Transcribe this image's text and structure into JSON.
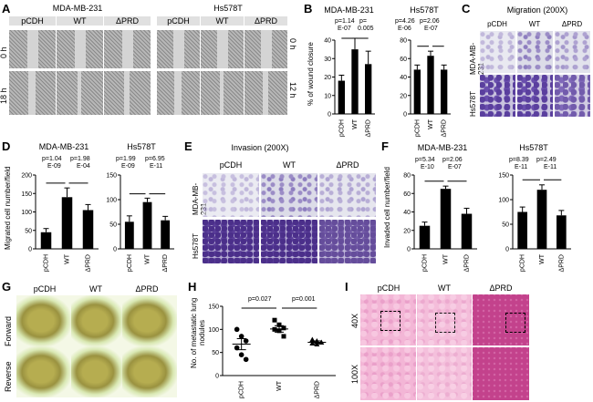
{
  "panels": {
    "A": "A",
    "B": "B",
    "C": "C",
    "D": "D",
    "E": "E",
    "F": "F",
    "G": "G",
    "H": "H",
    "I": "I"
  },
  "panelA": {
    "cell1": "MDA-MB-231",
    "cell2": "Hs578T",
    "cols": [
      "pCDH",
      "WT",
      "ΔPRD",
      "pCDH",
      "WT",
      "ΔPRD"
    ],
    "rows_left": [
      "0 h",
      "18 h"
    ],
    "rows_right": [
      "0 h",
      "12 h"
    ]
  },
  "panelB": {
    "chart1": {
      "title": "MDA-MB-231",
      "ylabel": "% of wound closure",
      "p1": "p=1.14",
      "p1b": "E-07",
      "p2": "p=",
      "p2b": "0.005",
      "categories": [
        "pCDH",
        "WT",
        "ΔPRD"
      ]
    },
    "chart2": {
      "title": "Hs578T",
      "p1": "p=4.26",
      "p1b": "E-06",
      "p2": "p=2.06",
      "p2b": "E-07",
      "categories": [
        "pCDH",
        "WT",
        "ΔPRD"
      ]
    }
  },
  "panelC": {
    "title": "Migration (200X)",
    "cols": [
      "pCDH",
      "WT",
      "ΔPRD"
    ],
    "rows": [
      "MDA-MB-231",
      "Hs578T"
    ]
  },
  "panelD": {
    "ylabel": "Migrated cell number/field",
    "chart1": {
      "title": "MDA-MB-231",
      "p1": "p=1.04",
      "p1b": "E-09",
      "p2": "p=1.98",
      "p2b": "E-04",
      "categories": [
        "pCDH",
        "WT",
        "ΔPRD"
      ]
    },
    "chart2": {
      "title": "Hs578T",
      "p1": "p=1.99",
      "p1b": "E-09",
      "p2": "p=6.95",
      "p2b": "E-11",
      "categories": [
        "pCDH",
        "WT",
        "ΔPRD"
      ]
    }
  },
  "panelE": {
    "title": "Invasion  (200X)",
    "cols": [
      "pCDH",
      "WT",
      "ΔPRD"
    ],
    "rows": [
      "MDA-MB-231",
      "Hs578T"
    ]
  },
  "panelF": {
    "ylabel": "Invaded  cell number/field",
    "chart1": {
      "title": "MDA-MB-231",
      "p1": "p=5.34",
      "p1b": "E-10",
      "p2": "p=2.06",
      "p2b": "E-07",
      "categories": [
        "pCDH",
        "WT",
        "ΔPRD"
      ]
    },
    "chart2": {
      "title": "Hs578T",
      "p1": "p=8.39",
      "p1b": "E-11",
      "p2": "p=2.49",
      "p2b": "E-11",
      "categories": [
        "pCDH",
        "WT",
        "ΔPRD"
      ]
    }
  },
  "panelG": {
    "cols": [
      "pCDH",
      "WT",
      "ΔPRD"
    ],
    "rows": [
      "Forward",
      "Reverse"
    ]
  },
  "panelH": {
    "ylabel": "No. of metastatic lung nodules",
    "p1": "p=0.027",
    "p2": "p=0.001",
    "categories": [
      "pCDH",
      "WT",
      "ΔPRD"
    ]
  },
  "panelI": {
    "cols": [
      "pCDH",
      "WT",
      "ΔPRD"
    ],
    "rows": [
      "40X",
      "100X"
    ]
  },
  "chart_data": [
    {
      "type": "bar",
      "title": "MDA-MB-231",
      "ylabel": "% of wound closure",
      "categories": [
        "pCDH",
        "WT",
        "ΔPRD"
      ],
      "values": [
        18,
        35,
        27
      ],
      "errors": [
        3,
        6,
        7
      ],
      "ylim": [
        0,
        40
      ],
      "yticks": [
        0,
        10,
        20,
        30,
        40
      ]
    },
    {
      "type": "bar",
      "title": "Hs578T",
      "categories": [
        "pCDH",
        "WT",
        "ΔPRD"
      ],
      "values": [
        48,
        63,
        48
      ],
      "errors": [
        5,
        5,
        5
      ],
      "ylim": [
        0,
        80
      ],
      "yticks": [
        0,
        20,
        40,
        60,
        80
      ]
    },
    {
      "type": "bar",
      "title": "MDA-MB-231",
      "ylabel": "Migrated cell number/field",
      "categories": [
        "pCDH",
        "WT",
        "ΔPRD"
      ],
      "values": [
        45,
        140,
        105
      ],
      "errors": [
        10,
        25,
        15
      ],
      "ylim": [
        0,
        200
      ],
      "yticks": [
        0,
        50,
        100,
        150,
        200
      ]
    },
    {
      "type": "bar",
      "title": "Hs578T",
      "categories": [
        "pCDH",
        "WT",
        "ΔPRD"
      ],
      "values": [
        55,
        95,
        58
      ],
      "errors": [
        12,
        8,
        8
      ],
      "ylim": [
        0,
        150
      ],
      "yticks": [
        0,
        50,
        100,
        150
      ]
    },
    {
      "type": "bar",
      "title": "MDA-MB-231",
      "ylabel": "Invaded  cell number/field",
      "categories": [
        "pCDH",
        "WT",
        "ΔPRD"
      ],
      "values": [
        25,
        65,
        38
      ],
      "errors": [
        4,
        3,
        6
      ],
      "ylim": [
        0,
        80
      ],
      "yticks": [
        0,
        20,
        40,
        60,
        80
      ]
    },
    {
      "type": "bar",
      "title": "Hs578T",
      "categories": [
        "pCDH",
        "WT",
        "ΔPRD"
      ],
      "values": [
        75,
        120,
        68
      ],
      "errors": [
        10,
        10,
        10
      ],
      "ylim": [
        0,
        150
      ],
      "yticks": [
        0,
        50,
        100,
        150
      ]
    },
    {
      "type": "scatter",
      "ylabel": "No. of metastatic lung nodules",
      "categories": [
        "pCDH",
        "WT",
        "ΔPRD"
      ],
      "points": [
        [
          100,
          85,
          75,
          60,
          45,
          35
        ],
        [
          120,
          110,
          103,
          100,
          97,
          85
        ],
        [
          78,
          75,
          72,
          70,
          68
        ]
      ],
      "means": [
        68,
        101,
        72
      ],
      "sem": [
        12,
        7,
        3
      ],
      "ylim": [
        0,
        150
      ],
      "yticks": [
        0,
        50,
        100,
        150
      ]
    }
  ]
}
